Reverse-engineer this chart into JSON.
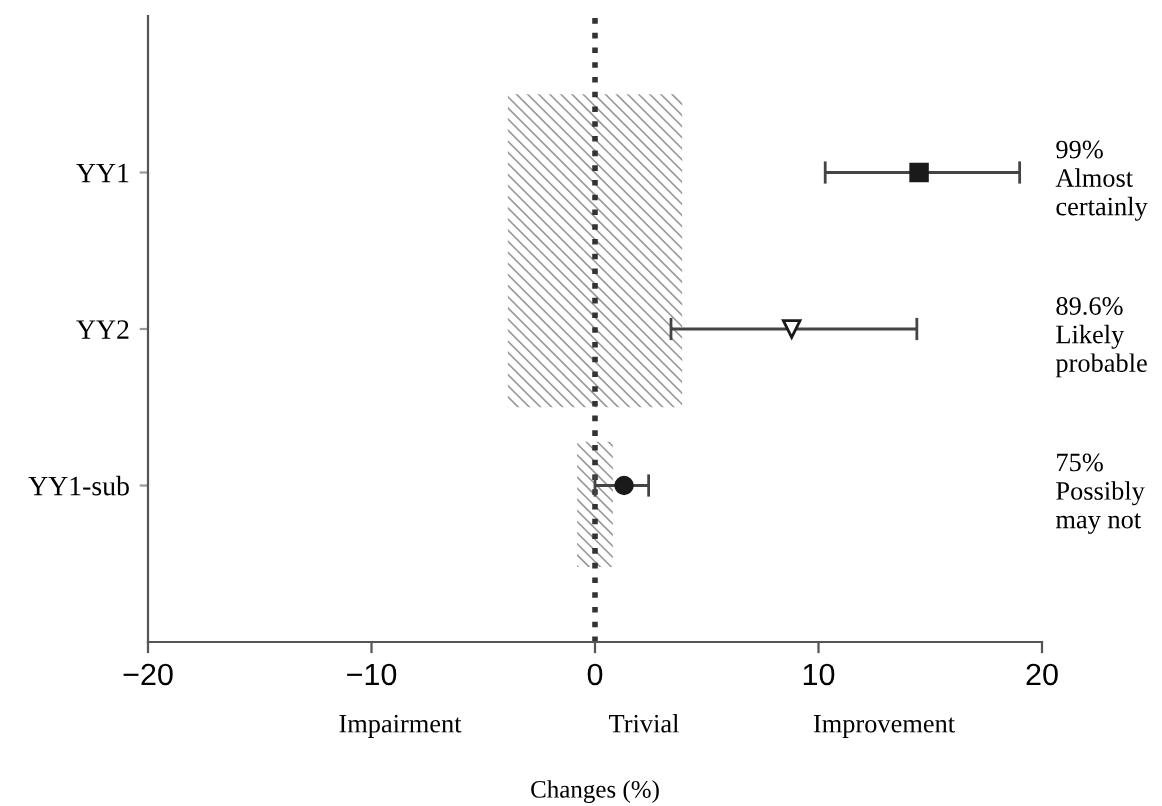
{
  "chart_data": {
    "type": "scatter",
    "orientation": "horizontal",
    "xlabel": "Changes (%)",
    "categories": [
      "YY1",
      "YY2",
      "YY1-sub"
    ],
    "xlim": [
      -20,
      20
    ],
    "xticks": [
      {
        "value": -20,
        "label": "−20"
      },
      {
        "value": -10,
        "label": "−10"
      },
      0,
      10,
      20
    ],
    "series": [
      {
        "type": "bar",
        "color": "#9a9a9a",
        "base": [
          -3.9,
          -3.9,
          -0.8
        ],
        "values": [
          7.8,
          7.8,
          1.6
        ]
      },
      {
        "color": "#1a1a1a",
        "marker": "square",
        "values": [
          14.5,
          null,
          null
        ],
        "errors": [
          [
            10.3,
            19.0
          ],
          null,
          null
        ]
      },
      {
        "color": "#1a1a1a",
        "marker": "triangle",
        "values": [
          null,
          8.8,
          null
        ],
        "errors": [
          null,
          [
            3.4,
            14.4
          ],
          null
        ]
      },
      {
        "color": "#1a1a1a",
        "marker": "circle",
        "values": [
          null,
          null,
          1.3
        ],
        "errors": [
          null,
          null,
          [
            0.0,
            2.4
          ]
        ]
      }
    ],
    "ref_lines": [
      {
        "axis": "x",
        "value": 0,
        "line_style": "dotted",
        "color": "#333333"
      }
    ],
    "annotations": [
      "99%\nAlmost\ncertainly",
      "89.6%\nLikely\nprobable",
      "75%\nPossibly\nmay not",
      "Impairment",
      "Trivial",
      "Improvement"
    ],
    "grid": false,
    "legend": false
  }
}
